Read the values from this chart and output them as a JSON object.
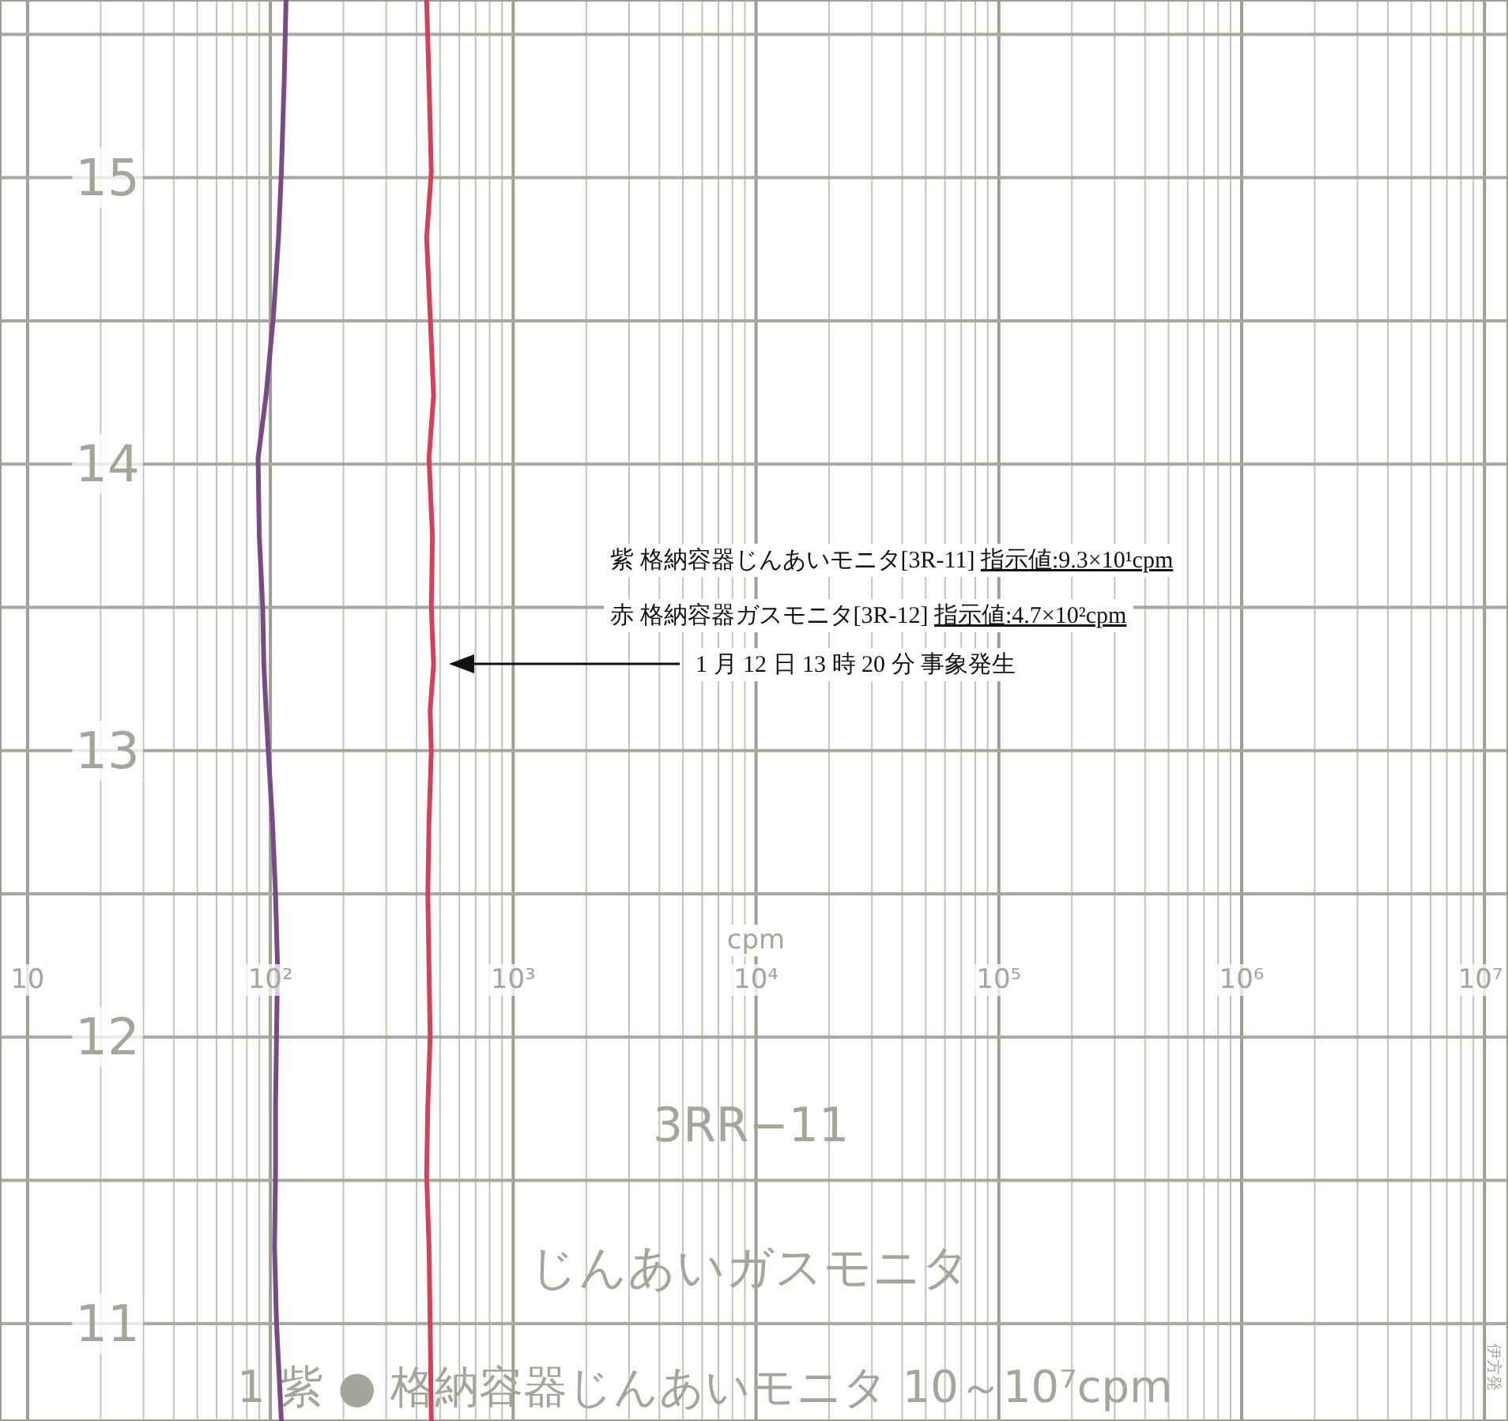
{
  "chart_data": {
    "type": "line",
    "xlabel": "cpm",
    "log": "x",
    "grid": true,
    "xlim": [
      7.7,
      12500000
    ],
    "ylim": [
      10.66,
      15.62
    ],
    "xticks": [
      {
        "value": 10,
        "label": "10"
      },
      {
        "value": 20,
        "label": null
      },
      {
        "value": 30,
        "label": null
      },
      {
        "value": 40,
        "label": null
      },
      {
        "value": 50,
        "label": null
      },
      {
        "value": 60,
        "label": null
      },
      {
        "value": 70,
        "label": null
      },
      {
        "value": 80,
        "label": null
      },
      {
        "value": 90,
        "label": null
      },
      {
        "value": 100,
        "label": "10²"
      },
      {
        "value": 200,
        "label": null
      },
      {
        "value": 300,
        "label": null
      },
      {
        "value": 400,
        "label": null
      },
      {
        "value": 500,
        "label": null
      },
      {
        "value": 600,
        "label": null
      },
      {
        "value": 700,
        "label": null
      },
      {
        "value": 800,
        "label": null
      },
      {
        "value": 900,
        "label": null
      },
      {
        "value": 1000,
        "label": "10³"
      },
      {
        "value": 2000,
        "label": null
      },
      {
        "value": 3000,
        "label": null
      },
      {
        "value": 4000,
        "label": null
      },
      {
        "value": 5000,
        "label": null
      },
      {
        "value": 6000,
        "label": null
      },
      {
        "value": 7000,
        "label": null
      },
      {
        "value": 8000,
        "label": null
      },
      {
        "value": 9000,
        "label": null
      },
      {
        "value": 10000,
        "label": "10⁴"
      },
      {
        "value": 20000,
        "label": null
      },
      {
        "value": 30000,
        "label": null
      },
      {
        "value": 40000,
        "label": null
      },
      {
        "value": 50000,
        "label": null
      },
      {
        "value": 60000,
        "label": null
      },
      {
        "value": 70000,
        "label": null
      },
      {
        "value": 80000,
        "label": null
      },
      {
        "value": 90000,
        "label": null
      },
      {
        "value": 100000,
        "label": "10⁵"
      },
      {
        "value": 200000,
        "label": null
      },
      {
        "value": 300000,
        "label": null
      },
      {
        "value": 400000,
        "label": null
      },
      {
        "value": 500000,
        "label": null
      },
      {
        "value": 600000,
        "label": null
      },
      {
        "value": 700000,
        "label": null
      },
      {
        "value": 800000,
        "label": null
      },
      {
        "value": 900000,
        "label": null
      },
      {
        "value": 1000000,
        "label": "10⁶"
      },
      {
        "value": 2000000,
        "label": null
      },
      {
        "value": 3000000,
        "label": null
      },
      {
        "value": 4000000,
        "label": null
      },
      {
        "value": 5000000,
        "label": null
      },
      {
        "value": 6000000,
        "label": null
      },
      {
        "value": 7000000,
        "label": null
      },
      {
        "value": 8000000,
        "label": null
      },
      {
        "value": 9000000,
        "label": null
      },
      {
        "value": 10000000,
        "label": "10⁷"
      }
    ],
    "yticks": [
      {
        "value": 11,
        "label": "11"
      },
      {
        "value": 11.5,
        "label": null
      },
      {
        "value": 12,
        "label": "12"
      },
      {
        "value": 12.5,
        "label": null
      },
      {
        "value": 13,
        "label": "13"
      },
      {
        "value": 13.5,
        "label": null
      },
      {
        "value": 14,
        "label": "14"
      },
      {
        "value": 14.5,
        "label": null
      },
      {
        "value": 15,
        "label": "15"
      },
      {
        "value": 15.5,
        "label": null
      }
    ],
    "series": [
      {
        "color": "#7a4a86",
        "x": [
          116,
          114,
          111,
          108,
          103,
          96,
          89,
          90,
          93,
          94,
          96,
          98,
          102,
          105,
          107,
          106,
          105,
          105,
          104,
          106,
          111
        ],
        "values": [
          15.62,
          15.34,
          15.02,
          14.79,
          14.52,
          14.24,
          14.02,
          13.75,
          13.5,
          13.3,
          13.14,
          13.0,
          12.75,
          12.5,
          12.25,
          12.0,
          11.76,
          11.52,
          11.27,
          11.0,
          10.66
        ]
      },
      {
        "color": "#d8405a",
        "x": [
          440,
          450,
          460,
          440,
          455,
          470,
          450,
          465,
          460,
          470,
          455,
          460,
          450,
          445,
          450,
          455,
          445,
          440,
          450,
          455,
          460
        ],
        "values": [
          15.62,
          15.34,
          15.02,
          14.79,
          14.52,
          14.24,
          14.02,
          13.75,
          13.5,
          13.3,
          13.14,
          13.0,
          12.75,
          12.5,
          12.25,
          12.0,
          11.76,
          11.52,
          11.27,
          11.0,
          10.66
        ]
      }
    ],
    "annotations": [
      "紫 格納容器じんあいモニタ[3R-11] 指示値:9.3×10¹cpm",
      "赤 格納容器ガスモニタ[3R-12] 指示値:4.7×10²cpm",
      "1 月 12 日 13 時 20 分 事象発生",
      "3RR−11",
      "じんあいガスモニタ",
      "1 紫 ● 格納容器じんあいモニタ 10～10⁷cpm",
      "伊方発"
    ]
  }
}
